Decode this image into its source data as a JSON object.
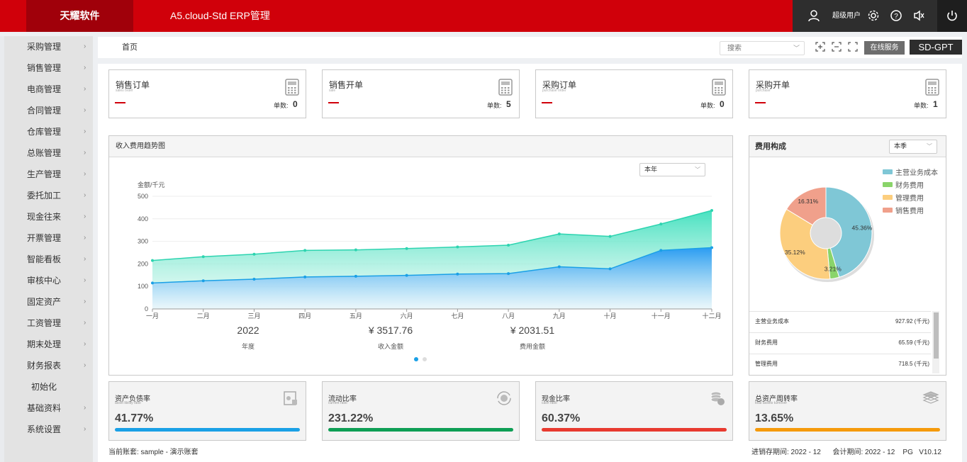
{
  "header": {
    "brand": "天耀软件",
    "title": "A5.cloud-Std ERP管理",
    "user_name": "超级用户"
  },
  "sidebar": {
    "items": [
      {
        "label": "采购管理"
      },
      {
        "label": "销售管理"
      },
      {
        "label": "电商管理"
      },
      {
        "label": "合同管理"
      },
      {
        "label": "仓库管理"
      },
      {
        "label": "总账管理"
      },
      {
        "label": "生产管理"
      },
      {
        "label": "委托加工"
      },
      {
        "label": "现金往来"
      },
      {
        "label": "开票管理"
      },
      {
        "label": "智能看板"
      },
      {
        "label": "审核中心"
      },
      {
        "label": "固定资产"
      },
      {
        "label": "工资管理"
      },
      {
        "label": "期末处理"
      },
      {
        "label": "财务报表"
      },
      {
        "label": "初始化"
      },
      {
        "label": "基础资料"
      },
      {
        "label": "系统设置"
      }
    ]
  },
  "toolbar": {
    "breadcrumb": "首页",
    "search_placeholder": "搜索",
    "online_service": "在线服务",
    "gpt": "SD-GPT"
  },
  "kpis": [
    {
      "title": "销售订单",
      "subtitle": "sales order",
      "count_label": "单数:",
      "count": "0"
    },
    {
      "title": "销售开单",
      "subtitle": "sale",
      "count_label": "单数:",
      "count": "5"
    },
    {
      "title": "采购订单",
      "subtitle": "purchase order",
      "count_label": "单数:",
      "count": "0"
    },
    {
      "title": "采购开单",
      "subtitle": "purchase",
      "count_label": "单数:",
      "count": "1"
    }
  ],
  "trend": {
    "title": "收入费用趋势图",
    "period": "本年",
    "stats": [
      {
        "value": "2022",
        "label": "年度"
      },
      {
        "value": "¥ 3517.76",
        "label": "收入金额"
      },
      {
        "value": "¥ 2031.51",
        "label": "费用金额"
      }
    ]
  },
  "cost": {
    "title": "费用构成",
    "period": "本季",
    "rows": [
      {
        "name": "主营业务成本",
        "value": "927.92 (千元)"
      },
      {
        "name": "财务费用",
        "value": "65.59 (千元)"
      },
      {
        "name": "管理费用",
        "value": "718.5 (千元)"
      }
    ]
  },
  "ratios": [
    {
      "title": "资产负债率",
      "subtitle": "asset libility ratio",
      "value": "41.77%",
      "color": "#1aa0e6"
    },
    {
      "title": "流动比率",
      "subtitle": "current ratio",
      "value": "231.22%",
      "color": "#0e9e55"
    },
    {
      "title": "现金比率",
      "subtitle": "cash ratio",
      "value": "60.37%",
      "color": "#e83a2f"
    },
    {
      "title": "总资产周转率",
      "subtitle": "total assets turnover",
      "value": "13.65%",
      "color": "#f59a0b"
    }
  ],
  "footer": {
    "account": "当前账套: sample - 演示账套",
    "period_info": "进销存期间: 2022 - 12      会计期间: 2022 - 12    PG   V10.12"
  },
  "chart_data": [
    {
      "type": "area",
      "title": "",
      "ylabel": "金额/千元",
      "xlabel": "",
      "ylim": [
        0,
        500
      ],
      "yticks": [
        "0",
        "100",
        "200",
        "300",
        "400",
        "500"
      ],
      "categories": [
        "一月",
        "二月",
        "三月",
        "四月",
        "五月",
        "六月",
        "七月",
        "八月",
        "九月",
        "十月",
        "十一月",
        "十二月"
      ],
      "series": [
        {
          "values": [
            215,
            232,
            243,
            260,
            262,
            268,
            275,
            283,
            333,
            322,
            377,
            437
          ],
          "color": "#2dd4b0"
        },
        {
          "values": [
            115,
            125,
            132,
            142,
            145,
            149,
            155,
            157,
            187,
            178,
            260,
            272
          ],
          "color": "#1aa0e6"
        }
      ],
      "grid": true
    },
    {
      "type": "pie",
      "legend_position": "top-right",
      "slices": [
        {
          "name": "主营业务成本",
          "value": 45.36,
          "label": "45.36%",
          "color": "#7fc7d6"
        },
        {
          "name": "财务费用",
          "value": 3.21,
          "label": "3.21%",
          "color": "#8ad46a"
        },
        {
          "name": "管理费用",
          "value": 35.12,
          "label": "35.12%",
          "color": "#fcce7e"
        },
        {
          "name": "销售费用",
          "value": 16.31,
          "label": "16.31%",
          "color": "#f0a08b"
        }
      ]
    }
  ]
}
